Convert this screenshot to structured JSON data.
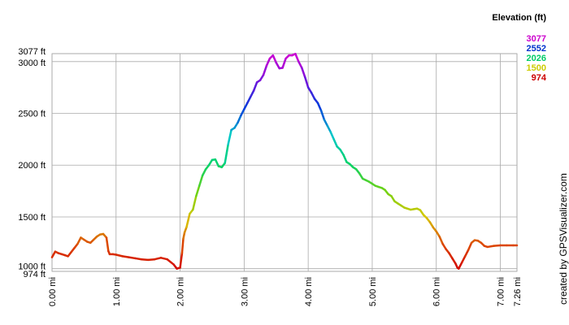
{
  "chart_data": {
    "type": "line",
    "x_unit": "mi",
    "y_unit": "ft",
    "xlim": [
      0,
      7.26
    ],
    "ylim": [
      974,
      3077
    ],
    "grid": true,
    "x_ticks": [
      {
        "value": 0,
        "label": "0.00 mi"
      },
      {
        "value": 1,
        "label": "1.00 mi"
      },
      {
        "value": 2,
        "label": "2.00 mi"
      },
      {
        "value": 3,
        "label": "3.00 mi"
      },
      {
        "value": 4,
        "label": "4.00 mi"
      },
      {
        "value": 5,
        "label": "5.00 mi"
      },
      {
        "value": 6,
        "label": "6.00 mi"
      },
      {
        "value": 7,
        "label": "7.00 mi"
      },
      {
        "value": 7.26,
        "label": "7.26 mi"
      }
    ],
    "y_ticks": [
      {
        "value": 974,
        "label": "974 ft"
      },
      {
        "value": 1000,
        "label": "1000 ft"
      },
      {
        "value": 1500,
        "label": "1500 ft"
      },
      {
        "value": 2000,
        "label": "2000 ft"
      },
      {
        "value": 2500,
        "label": "2500 ft"
      },
      {
        "value": 3000,
        "label": "3000 ft"
      },
      {
        "value": 3077,
        "label": "3077 ft"
      }
    ],
    "legend": {
      "title": "Elevation (ft)",
      "placement": "top-right",
      "entries": [
        {
          "label": "3077",
          "color": "#cc00cc"
        },
        {
          "label": "2552",
          "color": "#0033cc"
        },
        {
          "label": "2026",
          "color": "#00cc66"
        },
        {
          "label": "1500",
          "color": "#cccc00"
        },
        {
          "label": "974",
          "color": "#cc0000"
        }
      ]
    },
    "series": [
      {
        "x": [
          0,
          0.05,
          0.1,
          0.15,
          0.2,
          0.25,
          0.3,
          0.35,
          0.4,
          0.45,
          0.5,
          0.55,
          0.6,
          0.65,
          0.7,
          0.75,
          0.8,
          0.85,
          0.88,
          0.9,
          0.95,
          1.0,
          1.1,
          1.2,
          1.3,
          1.4,
          1.5,
          1.6,
          1.7,
          1.8,
          1.9,
          1.95,
          2.0,
          2.03,
          2.05,
          2.07,
          2.1,
          2.15,
          2.2,
          2.25,
          2.3,
          2.35,
          2.4,
          2.45,
          2.5,
          2.55,
          2.6,
          2.65,
          2.7,
          2.75,
          2.8,
          2.85,
          2.9,
          2.95,
          3.0,
          3.05,
          3.1,
          3.15,
          3.2,
          3.25,
          3.3,
          3.35,
          3.4,
          3.45,
          3.5,
          3.55,
          3.6,
          3.65,
          3.7,
          3.75,
          3.8,
          3.85,
          3.9,
          3.95,
          4.0,
          4.05,
          4.1,
          4.15,
          4.2,
          4.25,
          4.3,
          4.35,
          4.4,
          4.45,
          4.5,
          4.55,
          4.6,
          4.65,
          4.7,
          4.75,
          4.8,
          4.85,
          4.9,
          4.95,
          5.0,
          5.05,
          5.1,
          5.15,
          5.2,
          5.25,
          5.3,
          5.35,
          5.4,
          5.45,
          5.5,
          5.55,
          5.6,
          5.65,
          5.7,
          5.75,
          5.8,
          5.85,
          5.9,
          5.95,
          6.0,
          6.05,
          6.1,
          6.15,
          6.2,
          6.25,
          6.3,
          6.33,
          6.35,
          6.4,
          6.45,
          6.5,
          6.55,
          6.6,
          6.65,
          6.7,
          6.75,
          6.8,
          6.9,
          7.0,
          7.1,
          7.2,
          7.26
        ],
        "values": [
          1110,
          1165,
          1150,
          1140,
          1130,
          1120,
          1160,
          1200,
          1240,
          1300,
          1280,
          1260,
          1250,
          1280,
          1310,
          1330,
          1335,
          1300,
          1170,
          1140,
          1140,
          1135,
          1120,
          1110,
          1100,
          1090,
          1085,
          1090,
          1105,
          1090,
          1040,
          1000,
          1010,
          1150,
          1290,
          1350,
          1400,
          1530,
          1570,
          1700,
          1800,
          1900,
          1960,
          2000,
          2050,
          2055,
          1990,
          1980,
          2020,
          2200,
          2340,
          2360,
          2410,
          2480,
          2540,
          2600,
          2660,
          2720,
          2800,
          2820,
          2870,
          2960,
          3030,
          3060,
          2990,
          2935,
          2940,
          3030,
          3060,
          3060,
          3075,
          3000,
          2940,
          2850,
          2750,
          2700,
          2640,
          2600,
          2530,
          2440,
          2380,
          2320,
          2250,
          2180,
          2150,
          2100,
          2030,
          2010,
          1980,
          1960,
          1920,
          1870,
          1855,
          1840,
          1820,
          1800,
          1790,
          1780,
          1760,
          1720,
          1700,
          1650,
          1630,
          1610,
          1590,
          1580,
          1570,
          1575,
          1580,
          1565,
          1520,
          1490,
          1450,
          1400,
          1360,
          1310,
          1240,
          1190,
          1150,
          1100,
          1050,
          1010,
          1000,
          1060,
          1120,
          1180,
          1250,
          1275,
          1270,
          1250,
          1220,
          1210,
          1220,
          1225,
          1225,
          1225,
          1225
        ]
      }
    ]
  },
  "credit": "created by GPSVisualizer.com"
}
